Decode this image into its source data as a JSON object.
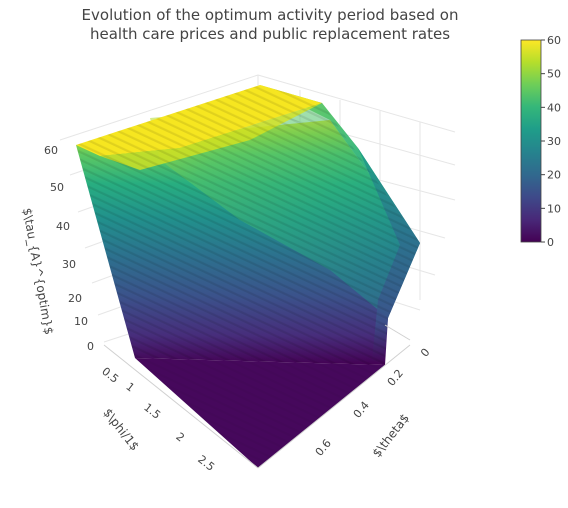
{
  "chart_data": {
    "type": "surface",
    "title_line1": "Evolution of the optimum activity period based on",
    "title_line2": "health care prices and public replacement rates",
    "xlabel": "$\\theta$",
    "ylabel": "$\\phi/1$",
    "zlabel": "$\\tau_{A}^{optim}$",
    "x_ticks": [
      "0",
      "0.2",
      "0.4",
      "0.6"
    ],
    "y_ticks": [
      "0.5",
      "1",
      "1.5",
      "2",
      "2.5"
    ],
    "z_ticks": [
      "0",
      "10",
      "20",
      "30",
      "40",
      "50",
      "60"
    ],
    "colorbar_ticks": [
      "0",
      "10",
      "20",
      "30",
      "40",
      "50",
      "60"
    ],
    "colorscale": "viridis",
    "colorscale_stops": [
      "#440154",
      "#482878",
      "#3e4989",
      "#31688e",
      "#26828e",
      "#1f9e89",
      "#35b779",
      "#6ece58",
      "#b5de2b",
      "#fde725"
    ],
    "zlim": [
      0,
      60
    ],
    "x_range": [
      0,
      0.7
    ],
    "y_range": [
      0.5,
      2.8
    ],
    "grid": true,
    "colorbar_position": "right",
    "surface_description": "Level near 0 for phi/1 above about 0.6; rising to about 60 for low phi/1 and low theta; declining toward about 15 as theta increases near phi/1 = 0.5"
  }
}
